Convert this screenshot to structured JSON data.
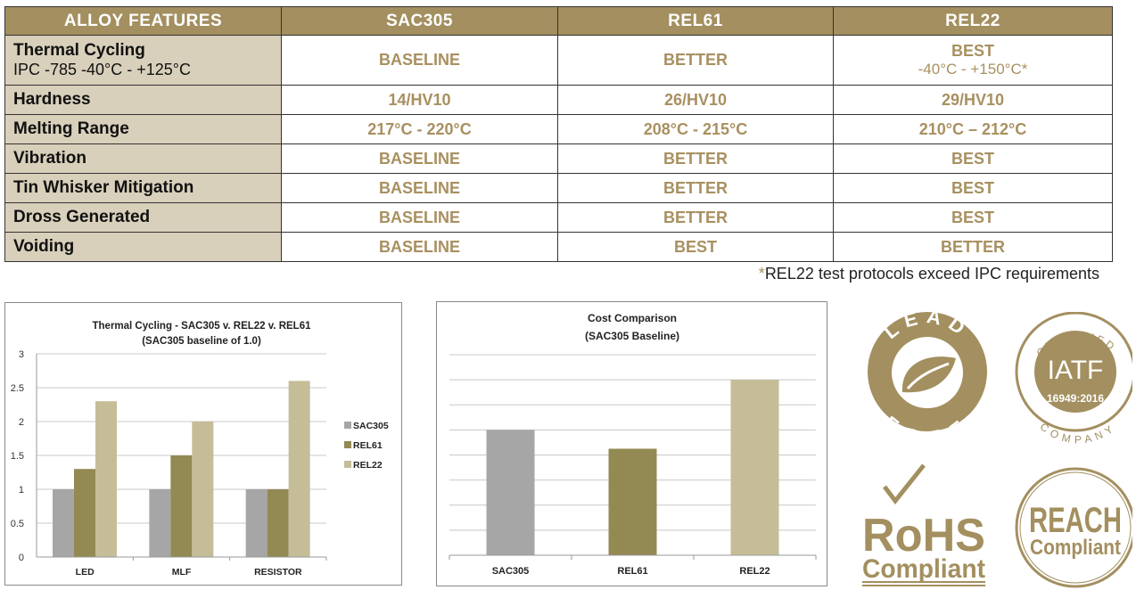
{
  "table": {
    "headers": [
      "ALLOY FEATURES",
      "SAC305",
      "REL61",
      "REL22"
    ],
    "rows": [
      {
        "label": "Thermal Cycling",
        "sublabel": "IPC -785 -40°C - +125°C",
        "values": [
          "BASELINE",
          "BETTER",
          "BEST"
        ],
        "rel22_sub": "-40°C - +150°C*"
      },
      {
        "label": "Hardness",
        "values": [
          "14/HV10",
          "26/HV10",
          "29/HV10"
        ]
      },
      {
        "label": "Melting Range",
        "values": [
          "217°C - 220°C",
          "208°C - 215°C",
          "210°C – 212°C"
        ]
      },
      {
        "label": "Vibration",
        "values": [
          "BASELINE",
          "BETTER",
          "BEST"
        ]
      },
      {
        "label": "Tin Whisker Mitigation",
        "values": [
          "BASELINE",
          "BETTER",
          "BEST"
        ]
      },
      {
        "label": "Dross Generated",
        "values": [
          "BASELINE",
          "BETTER",
          "BEST"
        ]
      },
      {
        "label": "Voiding",
        "values": [
          "BASELINE",
          "BEST",
          "BETTER"
        ]
      }
    ],
    "footnote_mark": "*",
    "footnote": "REL22 test protocols exceed IPC requirements"
  },
  "colors": {
    "header": "#a38f5f",
    "label_bg": "#d9d0bb",
    "value_text": "#a89060",
    "sac305": "#a6a6a6",
    "rel61": "#938953",
    "rel22": "#c4bd97",
    "logo": "#a38f5f"
  },
  "chart_data": [
    {
      "type": "bar",
      "title": "Thermal Cycling - SAC305 v. REL22 v. REL61",
      "subtitle": "(SAC305 baseline of 1.0)",
      "categories": [
        "LED",
        "MLF",
        "RESISTOR"
      ],
      "series": [
        {
          "name": "SAC305",
          "values": [
            1,
            1,
            1
          ]
        },
        {
          "name": "REL61",
          "values": [
            1.3,
            1.5,
            1
          ]
        },
        {
          "name": "REL22",
          "values": [
            2.3,
            2,
            2.6
          ]
        }
      ],
      "ylim": [
        0,
        3
      ],
      "yticks": [
        "0",
        "0.5",
        "1",
        "1.5",
        "2",
        "2.5",
        "3"
      ],
      "grid": true,
      "legend": "right"
    },
    {
      "type": "bar",
      "title": "Cost Comparison",
      "subtitle": "(SAC305 Baseline)",
      "categories": [
        "SAC305",
        "REL61",
        "REL22"
      ],
      "values": [
        1.0,
        0.85,
        1.4
      ],
      "ylim": [
        0,
        1.6
      ],
      "grid": true,
      "yticks_shown": false
    }
  ],
  "logos": {
    "lead_free": {
      "top": "LEAD",
      "bottom": "FREE"
    },
    "iatf": {
      "top": "CERTIFIED",
      "main": "IATF",
      "code": "16949:2016",
      "bottom": "COMPANY"
    },
    "rohs": {
      "main": "RoHS",
      "sub": "Compliant"
    },
    "reach": {
      "main": "REACH",
      "sub": "Compliant"
    }
  }
}
